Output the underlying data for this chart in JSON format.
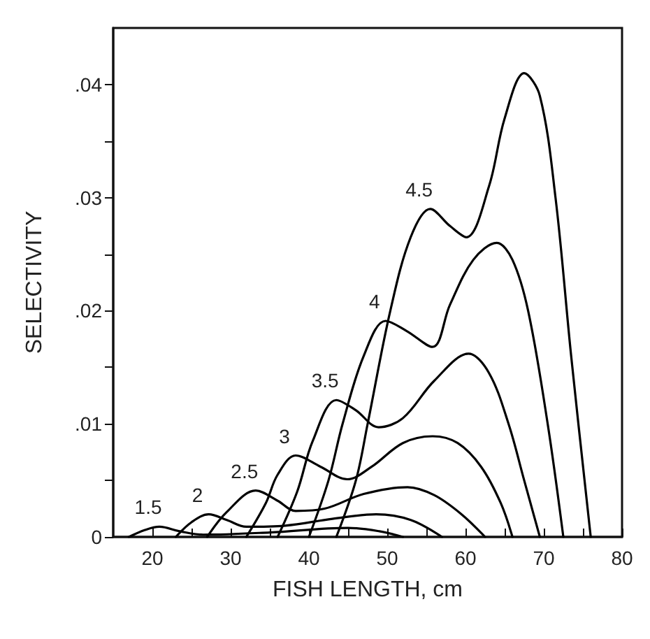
{
  "chart_data": {
    "type": "line",
    "xlabel": "FISH LENGTH, cm",
    "ylabel": "SELECTIVITY",
    "xlim": [
      15,
      80
    ],
    "ylim": [
      0,
      0.045
    ],
    "xticks": [
      20,
      {
        "value": 25,
        "label": null
      },
      30,
      {
        "value": 35,
        "label": null
      },
      40,
      {
        "value": 45,
        "label": null
      },
      50,
      {
        "value": 55,
        "label": null
      },
      60,
      {
        "value": 65,
        "label": null
      },
      70,
      {
        "value": 75,
        "label": null
      },
      80
    ],
    "yticks": [
      0,
      {
        "value": 0.005,
        "label": null
      },
      {
        "value": 0.01,
        "label": ".01"
      },
      {
        "value": 0.015,
        "label": null
      },
      {
        "value": 0.02,
        "label": ".02"
      },
      {
        "value": 0.025,
        "label": null
      },
      {
        "value": 0.03,
        "label": ".03"
      },
      {
        "value": 0.035,
        "label": null
      },
      {
        "value": 0.04,
        "label": ".04"
      }
    ],
    "grid": false,
    "legend": false,
    "marker": "none",
    "line_style": "solid",
    "series": [
      {
        "name": "1.5",
        "color": "#000000",
        "x": [
          17,
          19,
          20.9,
          23.5,
          26.5,
          35,
          45,
          49,
          52
        ],
        "values": [
          0,
          0.0006,
          0.0009,
          0.0005,
          0.0002,
          0.0004,
          0.0008,
          0.0005,
          0
        ]
      },
      {
        "name": "2",
        "color": "#000000",
        "x": [
          23,
          25,
          27.2,
          29.5,
          32,
          37,
          43,
          48.6,
          53,
          57
        ],
        "values": [
          0,
          0.0013,
          0.002,
          0.0015,
          0.0009,
          0.001,
          0.0016,
          0.002,
          0.0015,
          0
        ]
      },
      {
        "name": "2.5",
        "color": "#000000",
        "x": [
          27,
          29.5,
          33.2,
          36,
          38.3,
          42,
          47,
          52.6,
          56,
          59.5,
          62.5
        ],
        "values": [
          0,
          0.0022,
          0.0041,
          0.0032,
          0.0023,
          0.0025,
          0.0038,
          0.0044,
          0.0037,
          0.002,
          0
        ]
      },
      {
        "name": "3",
        "color": "#000000",
        "x": [
          32,
          34.5,
          36,
          38.3,
          41.5,
          44.9,
          48,
          52,
          55.8,
          59,
          62,
          64.5,
          66
        ],
        "values": [
          0,
          0.003,
          0.0055,
          0.0072,
          0.0062,
          0.0051,
          0.0062,
          0.0083,
          0.0089,
          0.0083,
          0.0062,
          0.003,
          0
        ]
      },
      {
        "name": "3.5",
        "color": "#000000",
        "x": [
          36,
          38.5,
          40.5,
          43.5,
          46,
          48.9,
          52,
          56,
          60.4,
          63,
          65.5,
          67.5,
          69.5
        ],
        "values": [
          0,
          0.004,
          0.0085,
          0.0121,
          0.0112,
          0.0097,
          0.0105,
          0.0138,
          0.0162,
          0.0145,
          0.01,
          0.005,
          0
        ]
      },
      {
        "name": "4",
        "color": "#000000",
        "x": [
          40,
          42.5,
          44.3,
          47,
          49.8,
          52.5,
          55.8,
          58,
          61,
          64,
          66,
          68,
          70.5,
          72.5
        ],
        "values": [
          0,
          0.005,
          0.01,
          0.016,
          0.0191,
          0.0182,
          0.0168,
          0.0205,
          0.0245,
          0.026,
          0.0245,
          0.02,
          0.01,
          0
        ]
      },
      {
        "name": "4.5",
        "color": "#000000",
        "x": [
          43.5,
          46,
          47.5,
          50.4,
          53,
          55.5,
          58,
          60.1,
          63,
          65,
          67.5,
          69.5,
          71.5,
          73.5,
          76
        ],
        "values": [
          0,
          0.005,
          0.01,
          0.02,
          0.0265,
          0.029,
          0.0275,
          0.0265,
          0.031,
          0.037,
          0.041,
          0.039,
          0.03,
          0.016,
          0
        ]
      }
    ]
  }
}
